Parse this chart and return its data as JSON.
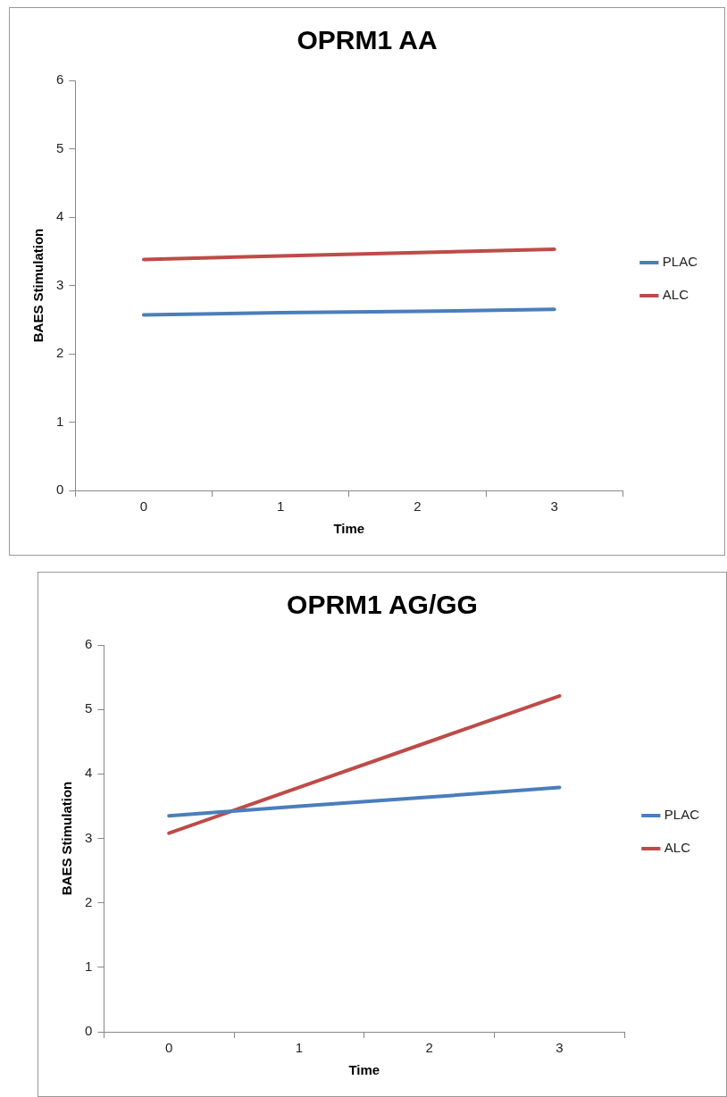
{
  "chart_data": [
    {
      "type": "line",
      "title": "OPRM1 AA",
      "xlabel": "Time",
      "ylabel": "BAES Stimulation",
      "categories": [
        "0",
        "1",
        "2",
        "3"
      ],
      "series": [
        {
          "name": "PLAC",
          "color": "#4a7ebb",
          "values": [
            2.57,
            2.6,
            2.62,
            2.65
          ]
        },
        {
          "name": "ALC",
          "color": "#be4b48",
          "values": [
            3.38,
            3.43,
            3.48,
            3.53
          ]
        }
      ],
      "ylim": [
        0,
        6
      ],
      "yticks": [
        0,
        1,
        2,
        3,
        4,
        5,
        6
      ],
      "grid": false,
      "legend": "right",
      "marker": "none",
      "line_style": "solid"
    },
    {
      "type": "line",
      "title": "OPRM1 AG/GG",
      "xlabel": "Time",
      "ylabel": "BAES Stimulation",
      "categories": [
        "0",
        "1",
        "2",
        "3"
      ],
      "series": [
        {
          "name": "PLAC",
          "color": "#4a7ebb",
          "values": [
            3.35,
            3.5,
            3.64,
            3.79
          ]
        },
        {
          "name": "ALC",
          "color": "#be4b48",
          "values": [
            3.08,
            3.79,
            4.5,
            5.21
          ]
        }
      ],
      "ylim": [
        0,
        6
      ],
      "yticks": [
        0,
        1,
        2,
        3,
        4,
        5,
        6
      ],
      "grid": false,
      "legend": "right",
      "marker": "none",
      "line_style": "solid"
    }
  ]
}
